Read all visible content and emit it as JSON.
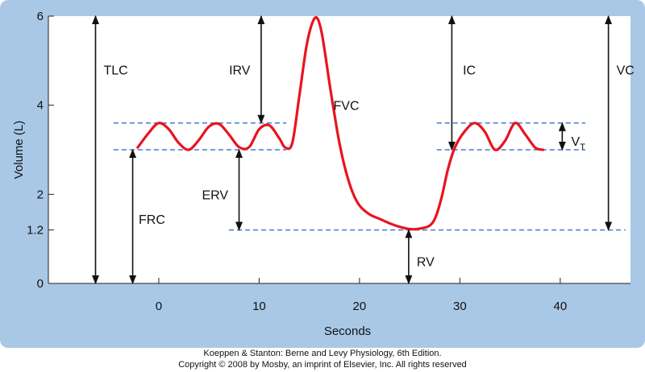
{
  "chart_data": {
    "type": "line",
    "xlabel": "Seconds",
    "ylabel": "Volume (L)",
    "xlim": [
      -11,
      47
    ],
    "ylim": [
      0,
      6
    ],
    "x_ticks": [
      0,
      10,
      20,
      30,
      40
    ],
    "y_ticks": [
      0,
      1.2,
      2,
      4,
      6
    ],
    "y_tick_labels": [
      "0",
      "1.2",
      "2",
      "4",
      "6"
    ],
    "grid": false,
    "series": [
      {
        "color": "#e8141e",
        "x": [
          -2.1,
          -1,
          0,
          1,
          2,
          3,
          4,
          5,
          6,
          7,
          8,
          9,
          10,
          11,
          12,
          12.6,
          13.3,
          14,
          14.7,
          15.3,
          15.8,
          16.3,
          17,
          17.5,
          18,
          18.6,
          19.3,
          20,
          21,
          22,
          23,
          24,
          25,
          26,
          27,
          27.6,
          28.2,
          28.8,
          29.5,
          30.5,
          31.5,
          32.5,
          33.5,
          34.5,
          35.5,
          36.5,
          37.5,
          38.3
        ],
        "y": [
          3.05,
          3.38,
          3.6,
          3.46,
          3.15,
          3.0,
          3.22,
          3.52,
          3.58,
          3.34,
          3.06,
          3.06,
          3.46,
          3.55,
          3.26,
          3.05,
          3.15,
          4.2,
          5.3,
          5.85,
          5.95,
          5.55,
          4.5,
          3.8,
          3.15,
          2.55,
          2.05,
          1.75,
          1.55,
          1.45,
          1.35,
          1.27,
          1.22,
          1.23,
          1.3,
          1.5,
          1.95,
          2.55,
          3.05,
          3.42,
          3.6,
          3.4,
          3.0,
          3.2,
          3.6,
          3.35,
          3.05,
          3.0
        ]
      }
    ],
    "reference_lines": [
      {
        "y": 3.6,
        "x_start": -4.5,
        "x_end": 12.7
      },
      {
        "y": 3.0,
        "x_start": -4.5,
        "x_end": 12.7
      },
      {
        "y": 3.6,
        "x_start": 27.7,
        "x_end": 42.5
      },
      {
        "y": 3.0,
        "x_start": 27.7,
        "x_end": 42.5
      },
      {
        "y": 1.2,
        "x_start": 7,
        "x_end": 46.5
      }
    ],
    "annotations": [
      {
        "label": "TLC",
        "arrow_x": -6.3,
        "y_from": 0,
        "y_to": 6,
        "text_x": -5.5,
        "text_y": 4.8
      },
      {
        "label": "IRV",
        "arrow_x": 10.2,
        "y_from": 3.6,
        "y_to": 6,
        "text_x": 7,
        "text_y": 4.8
      },
      {
        "label": "IC",
        "arrow_x": 29.2,
        "y_from": 3.0,
        "y_to": 6,
        "text_x": 30.3,
        "text_y": 4.8
      },
      {
        "label": "VC",
        "arrow_x": 44.8,
        "y_from": 1.2,
        "y_to": 6,
        "text_x": 45.6,
        "text_y": 4.8
      },
      {
        "label": "FVC",
        "text_x": 17.4,
        "text_y": 4.0
      },
      {
        "label": "ERV",
        "arrow_x": 8,
        "y_from": 1.2,
        "y_to": 3.0,
        "text_x": 4.3,
        "text_y": 2.0
      },
      {
        "label": "FRC",
        "arrow_x": -2.6,
        "y_from": 0,
        "y_to": 3.0,
        "text_x": -2.0,
        "text_y": 1.45
      },
      {
        "label": "RV",
        "arrow_x": 24.9,
        "y_from": 0,
        "y_to": 1.2,
        "text_x": 25.7,
        "text_y": 0.5
      },
      {
        "label": "V",
        "subscript": "T",
        "arrow_x": 40.2,
        "y_from": 3.0,
        "y_to": 3.6,
        "text_x": 41.1,
        "text_y": 3.2
      }
    ]
  },
  "credit": {
    "line1": "Koeppen & Stanton: Berne and Levy Physiology, 6th Edition.",
    "line2": "Copyright © 2008 by Mosby, an imprint of Elsevier, Inc. All rights reserved"
  },
  "colors": {
    "frame": "#a9c8e6",
    "plot_bg": "#ffffff",
    "curve": "#e8141e",
    "dashed": "#4a78c8",
    "text": "#111111"
  }
}
